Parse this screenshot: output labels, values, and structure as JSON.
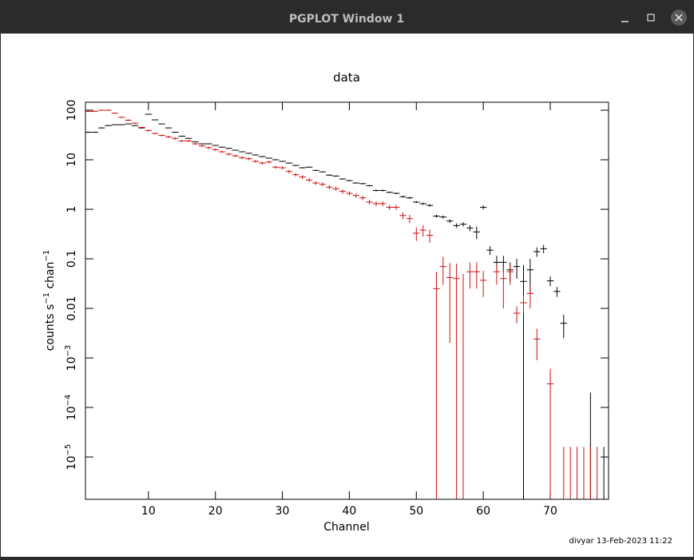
{
  "window": {
    "title": "PGPLOT Window 1"
  },
  "footer": "divyar 13-Feb-2023 11:22",
  "chart_data": {
    "type": "errorbar",
    "title": "data",
    "x_label": "Channel",
    "y_label": "counts s−1 chan−1",
    "xlim": [
      0.6,
      78.7
    ],
    "xticks": [
      10,
      20,
      30,
      40,
      50,
      60,
      70
    ],
    "ylim": [
      1.4e-06,
      145
    ],
    "ylog": true,
    "yticks": [
      100,
      10,
      1,
      0.1,
      0.01,
      {
        "value": 0.001,
        "label": "10−3"
      },
      {
        "value": 0.0001,
        "label": "10−4"
      },
      {
        "value": 1e-05,
        "label": "10−5"
      }
    ],
    "series": [
      {
        "color": "#000000",
        "x": [
          1,
          2,
          3,
          4,
          5,
          6,
          7,
          8,
          9,
          10,
          11,
          12,
          13,
          14,
          15,
          16,
          17,
          18,
          19,
          20,
          21,
          22,
          23,
          24,
          25,
          26,
          27,
          28,
          29,
          30,
          31,
          32,
          33,
          34,
          35,
          36,
          37,
          38,
          39,
          40,
          41,
          42,
          43,
          44,
          45,
          46,
          47,
          48,
          49,
          50,
          51,
          52,
          53,
          54,
          55,
          56,
          57,
          58,
          59,
          60,
          61,
          62,
          63,
          64,
          65,
          66,
          67,
          68,
          69,
          70,
          71,
          72,
          73,
          74,
          75,
          76,
          77,
          78
        ],
        "values": [
          36,
          36,
          44,
          49,
          51,
          51,
          53,
          49,
          44,
          83,
          64,
          53,
          44,
          36,
          30,
          27,
          23,
          21,
          21,
          19.5,
          18,
          17,
          15.6,
          14.5,
          13.5,
          12.5,
          11.6,
          10.8,
          10,
          9.3,
          8.6,
          7.7,
          6.9,
          7.1,
          6.1,
          5.7,
          4.9,
          4.7,
          4.1,
          3.8,
          3.4,
          3.3,
          3.0,
          2.4,
          2.4,
          2.2,
          2.1,
          1.8,
          1.7,
          1.4,
          1.3,
          1.2,
          0.73,
          0.7,
          0.58,
          0.47,
          0.5,
          0.42,
          0.35,
          1.1,
          0.15,
          0.085,
          0.085,
          0.06,
          0.07,
          0.035,
          0.06,
          0.14,
          0.16,
          0.036,
          0.022,
          0.005,
          null,
          null,
          null,
          0,
          null,
          0
        ],
        "errors": [
          1,
          1,
          1,
          1,
          1,
          1,
          1,
          1,
          1,
          1.5,
          1,
          1,
          1,
          0.8,
          0.7,
          0.6,
          0.5,
          0.5,
          0.5,
          0.4,
          0.4,
          0.4,
          0.3,
          0.3,
          0.3,
          0.3,
          0.3,
          0.25,
          0.25,
          0.2,
          0.2,
          0.2,
          0.2,
          0.2,
          0.15,
          0.15,
          0.15,
          0.15,
          0.12,
          0.12,
          0.1,
          0.1,
          0.1,
          0.1,
          0.1,
          0.08,
          0.08,
          0.08,
          0.08,
          0.07,
          0.07,
          0.07,
          0.05,
          0.05,
          0.05,
          0.05,
          0.05,
          0.06,
          0.1,
          0.1,
          0.03,
          0.03,
          0.03,
          0.025,
          0.03,
          0.04,
          0.04,
          0.03,
          0.03,
          0.008,
          0.005,
          0.0025,
          null,
          null,
          null,
          0.0002,
          null,
          1.6e-05
        ]
      },
      {
        "color": "#d01010",
        "x": [
          1,
          2,
          3,
          4,
          5,
          6,
          7,
          8,
          9,
          10,
          11,
          12,
          13,
          14,
          15,
          16,
          17,
          18,
          19,
          20,
          21,
          22,
          23,
          24,
          25,
          26,
          27,
          28,
          29,
          30,
          31,
          32,
          33,
          34,
          35,
          36,
          37,
          38,
          39,
          40,
          41,
          42,
          43,
          44,
          45,
          46,
          47,
          48,
          49,
          50,
          51,
          52,
          53,
          54,
          55,
          56,
          57,
          58,
          59,
          60,
          61,
          62,
          63,
          64,
          65,
          66,
          67,
          68,
          69,
          70,
          71,
          72,
          73,
          74,
          75,
          76,
          77
        ],
        "values": [
          95,
          95,
          100,
          100,
          87,
          72,
          63,
          55,
          45,
          39,
          34,
          31,
          29,
          27,
          24,
          24,
          21,
          19,
          17.5,
          16,
          14.5,
          13,
          12,
          11,
          10.5,
          9.3,
          8.6,
          9.0,
          7.1,
          6.9,
          5.8,
          5.0,
          4.5,
          3.9,
          3.4,
          3.2,
          2.8,
          2.6,
          2.3,
          2.1,
          1.9,
          1.7,
          1.4,
          1.3,
          1.3,
          1.1,
          1.1,
          0.75,
          0.65,
          0.33,
          0.38,
          0.3,
          0.025,
          0.07,
          0.042,
          0.04,
          0,
          0.055,
          0.055,
          0.037,
          null,
          0.055,
          0.04,
          0.055,
          0.008,
          0.013,
          0.02,
          0.0024,
          null,
          0.0003,
          null,
          0,
          0,
          0,
          0,
          0,
          0
        ],
        "errors": [
          3,
          3,
          3,
          3,
          3,
          2.5,
          2.5,
          2,
          2,
          2,
          1.5,
          1.5,
          1.5,
          1.5,
          1.2,
          1.2,
          1,
          1,
          1,
          0.9,
          0.8,
          0.8,
          0.7,
          0.7,
          0.7,
          0.6,
          0.6,
          0.6,
          0.5,
          0.5,
          0.5,
          0.4,
          0.4,
          0.35,
          0.3,
          0.3,
          0.28,
          0.26,
          0.23,
          0.21,
          0.19,
          0.17,
          0.15,
          0.14,
          0.14,
          0.13,
          0.13,
          0.12,
          0.12,
          0.1,
          0.1,
          0.09,
          0.03,
          0.04,
          0.04,
          0.04,
          0.05,
          0.03,
          0.03,
          0.02,
          null,
          0.025,
          0.03,
          0.025,
          0.003,
          0.005,
          0.01,
          0.0015,
          null,
          0.0003,
          null,
          1.6e-05,
          1.6e-05,
          1.6e-05,
          1.6e-05,
          1.6e-05,
          1.6e-05
        ]
      }
    ]
  }
}
